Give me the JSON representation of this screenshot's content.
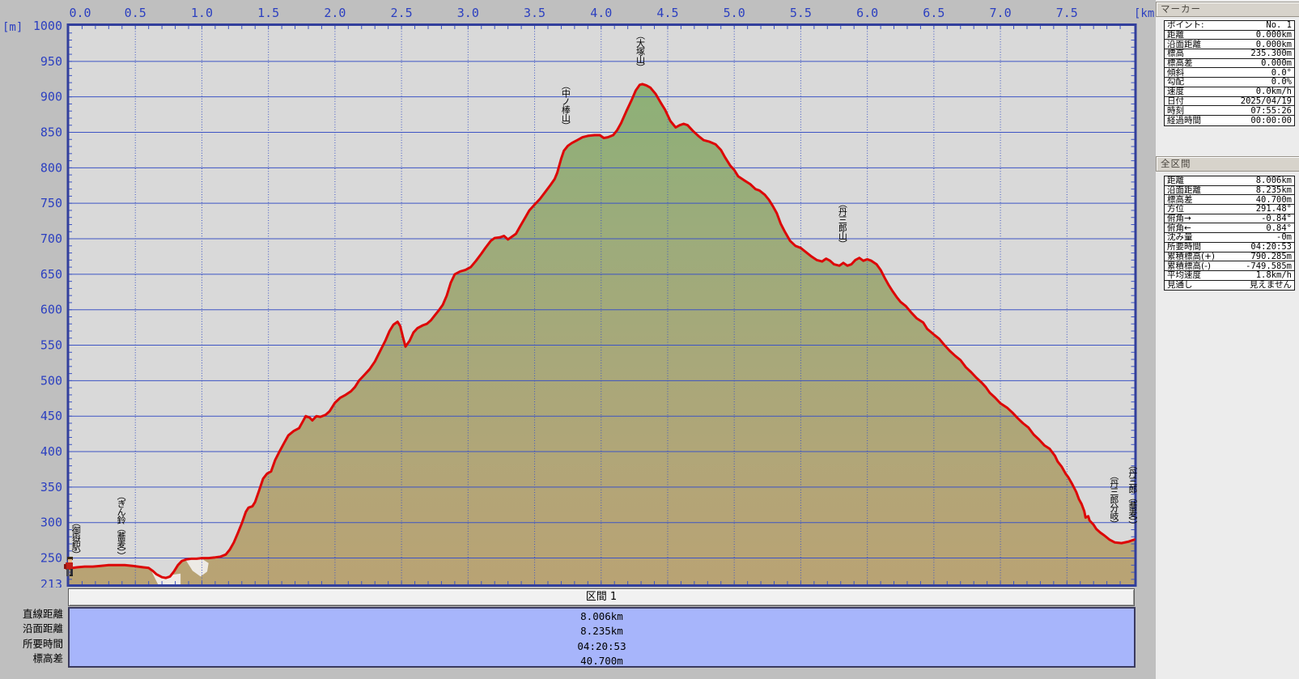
{
  "chart_data": {
    "type": "area",
    "title": "",
    "x_unit": "[km]",
    "y_unit": "[m]",
    "x_range": [
      0,
      8.006
    ],
    "y_range": [
      213,
      1000
    ],
    "x_ticks": [
      0.0,
      0.5,
      1.0,
      1.5,
      2.0,
      2.5,
      3.0,
      3.5,
      4.0,
      4.5,
      5.0,
      5.5,
      6.0,
      6.5,
      7.0,
      7.5
    ],
    "y_ticks": [
      1000,
      950,
      900,
      850,
      800,
      750,
      700,
      650,
      600,
      550,
      500,
      450,
      400,
      350,
      300,
      250,
      213
    ],
    "grid": true,
    "line_color": "#dd0606",
    "plot_bg": "#d9d9d9",
    "grid_color": "#3d54c4",
    "border_color": "#323f9c",
    "patch_color": "#edeae5",
    "fill_gradient": [
      "#82b06f",
      "#8eb077",
      "#9bac7b",
      "#a8a87a",
      "#b3a577",
      "#b9a374"
    ],
    "profile": [
      [
        0.0,
        235.3
      ],
      [
        0.06,
        237
      ],
      [
        0.12,
        238
      ],
      [
        0.18,
        238
      ],
      [
        0.24,
        239
      ],
      [
        0.3,
        240
      ],
      [
        0.36,
        240
      ],
      [
        0.42,
        240
      ],
      [
        0.48,
        239
      ],
      [
        0.52,
        238
      ],
      [
        0.56,
        237
      ],
      [
        0.6,
        236
      ],
      [
        0.63,
        232
      ],
      [
        0.66,
        227
      ],
      [
        0.7,
        223
      ],
      [
        0.73,
        222
      ],
      [
        0.76,
        224
      ],
      [
        0.79,
        231
      ],
      [
        0.82,
        240
      ],
      [
        0.85,
        246
      ],
      [
        0.88,
        248
      ],
      [
        0.92,
        249
      ],
      [
        0.96,
        249
      ],
      [
        1.0,
        250
      ],
      [
        1.05,
        250
      ],
      [
        1.1,
        251
      ],
      [
        1.14,
        252
      ],
      [
        1.18,
        255
      ],
      [
        1.21,
        262
      ],
      [
        1.24,
        272
      ],
      [
        1.27,
        285
      ],
      [
        1.3,
        299
      ],
      [
        1.33,
        315
      ],
      [
        1.35,
        321
      ],
      [
        1.38,
        323
      ],
      [
        1.4,
        329
      ],
      [
        1.43,
        345
      ],
      [
        1.46,
        362
      ],
      [
        1.49,
        369
      ],
      [
        1.52,
        372
      ],
      [
        1.55,
        388
      ],
      [
        1.58,
        399
      ],
      [
        1.62,
        413
      ],
      [
        1.65,
        423
      ],
      [
        1.69,
        429
      ],
      [
        1.73,
        433
      ],
      [
        1.76,
        443
      ],
      [
        1.78,
        450
      ],
      [
        1.81,
        448
      ],
      [
        1.83,
        444
      ],
      [
        1.86,
        450
      ],
      [
        1.89,
        449
      ],
      [
        1.93,
        452
      ],
      [
        1.96,
        457
      ],
      [
        2.0,
        469
      ],
      [
        2.04,
        476
      ],
      [
        2.08,
        480
      ],
      [
        2.12,
        485
      ],
      [
        2.15,
        491
      ],
      [
        2.18,
        500
      ],
      [
        2.22,
        508
      ],
      [
        2.26,
        516
      ],
      [
        2.3,
        527
      ],
      [
        2.34,
        542
      ],
      [
        2.38,
        557
      ],
      [
        2.41,
        570
      ],
      [
        2.44,
        579
      ],
      [
        2.47,
        583
      ],
      [
        2.49,
        577
      ],
      [
        2.51,
        562
      ],
      [
        2.53,
        548
      ],
      [
        2.56,
        556
      ],
      [
        2.59,
        568
      ],
      [
        2.62,
        574
      ],
      [
        2.66,
        578
      ],
      [
        2.69,
        580
      ],
      [
        2.72,
        585
      ],
      [
        2.75,
        592
      ],
      [
        2.78,
        599
      ],
      [
        2.81,
        607
      ],
      [
        2.84,
        620
      ],
      [
        2.87,
        638
      ],
      [
        2.9,
        650
      ],
      [
        2.94,
        654
      ],
      [
        2.98,
        656
      ],
      [
        3.02,
        660
      ],
      [
        3.06,
        669
      ],
      [
        3.1,
        679
      ],
      [
        3.13,
        687
      ],
      [
        3.17,
        697
      ],
      [
        3.2,
        701
      ],
      [
        3.24,
        702
      ],
      [
        3.27,
        704
      ],
      [
        3.3,
        699
      ],
      [
        3.33,
        703
      ],
      [
        3.36,
        707
      ],
      [
        3.39,
        717
      ],
      [
        3.43,
        730
      ],
      [
        3.46,
        740
      ],
      [
        3.5,
        748
      ],
      [
        3.54,
        756
      ],
      [
        3.58,
        766
      ],
      [
        3.62,
        776
      ],
      [
        3.65,
        784
      ],
      [
        3.67,
        793
      ],
      [
        3.7,
        813
      ],
      [
        3.72,
        824
      ],
      [
        3.75,
        831
      ],
      [
        3.78,
        835
      ],
      [
        3.82,
        839
      ],
      [
        3.86,
        843
      ],
      [
        3.9,
        845
      ],
      [
        3.95,
        846
      ],
      [
        3.99,
        846
      ],
      [
        4.02,
        842
      ],
      [
        4.05,
        843
      ],
      [
        4.09,
        846
      ],
      [
        4.12,
        853
      ],
      [
        4.15,
        863
      ],
      [
        4.19,
        880
      ],
      [
        4.23,
        896
      ],
      [
        4.26,
        909
      ],
      [
        4.29,
        917
      ],
      [
        4.31,
        918
      ],
      [
        4.34,
        916
      ],
      [
        4.37,
        913
      ],
      [
        4.41,
        904
      ],
      [
        4.45,
        891
      ],
      [
        4.48,
        882
      ],
      [
        4.52,
        866
      ],
      [
        4.56,
        857
      ],
      [
        4.59,
        860
      ],
      [
        4.62,
        862
      ],
      [
        4.65,
        860
      ],
      [
        4.69,
        852
      ],
      [
        4.73,
        845
      ],
      [
        4.77,
        839
      ],
      [
        4.81,
        837
      ],
      [
        4.86,
        833
      ],
      [
        4.9,
        825
      ],
      [
        4.93,
        815
      ],
      [
        4.97,
        803
      ],
      [
        5.0,
        797
      ],
      [
        5.03,
        788
      ],
      [
        5.07,
        783
      ],
      [
        5.12,
        777
      ],
      [
        5.16,
        770
      ],
      [
        5.19,
        768
      ],
      [
        5.23,
        762
      ],
      [
        5.26,
        755
      ],
      [
        5.29,
        746
      ],
      [
        5.32,
        736
      ],
      [
        5.35,
        721
      ],
      [
        5.38,
        710
      ],
      [
        5.42,
        697
      ],
      [
        5.46,
        690
      ],
      [
        5.5,
        687
      ],
      [
        5.54,
        681
      ],
      [
        5.58,
        675
      ],
      [
        5.62,
        670
      ],
      [
        5.66,
        668
      ],
      [
        5.69,
        672
      ],
      [
        5.72,
        669
      ],
      [
        5.75,
        664
      ],
      [
        5.79,
        662
      ],
      [
        5.82,
        666
      ],
      [
        5.85,
        662
      ],
      [
        5.88,
        664
      ],
      [
        5.91,
        670
      ],
      [
        5.94,
        673
      ],
      [
        5.97,
        669
      ],
      [
        6.0,
        671
      ],
      [
        6.03,
        669
      ],
      [
        6.07,
        664
      ],
      [
        6.1,
        656
      ],
      [
        6.13,
        645
      ],
      [
        6.16,
        635
      ],
      [
        6.19,
        626
      ],
      [
        6.22,
        618
      ],
      [
        6.25,
        611
      ],
      [
        6.29,
        605
      ],
      [
        6.33,
        596
      ],
      [
        6.37,
        588
      ],
      [
        6.42,
        582
      ],
      [
        6.45,
        573
      ],
      [
        6.5,
        565
      ],
      [
        6.54,
        559
      ],
      [
        6.58,
        550
      ],
      [
        6.62,
        542
      ],
      [
        6.66,
        535
      ],
      [
        6.7,
        529
      ],
      [
        6.74,
        519
      ],
      [
        6.78,
        512
      ],
      [
        6.82,
        504
      ],
      [
        6.86,
        497
      ],
      [
        6.89,
        491
      ],
      [
        6.92,
        483
      ],
      [
        6.96,
        476
      ],
      [
        7.0,
        468
      ],
      [
        7.05,
        462
      ],
      [
        7.09,
        455
      ],
      [
        7.13,
        447
      ],
      [
        7.17,
        440
      ],
      [
        7.21,
        434
      ],
      [
        7.25,
        424
      ],
      [
        7.29,
        417
      ],
      [
        7.33,
        409
      ],
      [
        7.37,
        404
      ],
      [
        7.41,
        394
      ],
      [
        7.43,
        386
      ],
      [
        7.46,
        379
      ],
      [
        7.49,
        369
      ],
      [
        7.51,
        364
      ],
      [
        7.54,
        354
      ],
      [
        7.57,
        343
      ],
      [
        7.59,
        333
      ],
      [
        7.61,
        326
      ],
      [
        7.63,
        316
      ],
      [
        7.64,
        307
      ],
      [
        7.66,
        309
      ],
      [
        7.67,
        303
      ],
      [
        7.7,
        297
      ],
      [
        7.72,
        291
      ],
      [
        7.75,
        286
      ],
      [
        7.78,
        282
      ],
      [
        7.82,
        276
      ],
      [
        7.86,
        272
      ],
      [
        7.91,
        271
      ],
      [
        7.96,
        273
      ],
      [
        8.006,
        276
      ]
    ],
    "annotations": [
      {
        "text": "（御嶽駅）",
        "km": 0.05,
        "top_m": 306
      },
      {
        "text": "（ぎん鈴（蕎麦））",
        "km": 0.39,
        "top_m": 344
      },
      {
        "text": "（中ノ棒山）",
        "km": 3.73,
        "top_m": 922
      },
      {
        "text": "（大塚山）",
        "km": 4.29,
        "top_m": 993
      },
      {
        "text": "（丹三郎山）",
        "km": 5.81,
        "top_m": 756
      },
      {
        "text": "（丹三郎分岐）",
        "km": 7.85,
        "top_m": 373
      },
      {
        "text": "（丹三郎（蕎麦））",
        "km": 7.99,
        "top_m": 387
      }
    ],
    "flat_patches": [
      [
        [
          0.6,
          240
        ],
        [
          0.63,
          228
        ],
        [
          0.67,
          213
        ],
        [
          0.84,
          213
        ],
        [
          0.84,
          228
        ],
        [
          0.76,
          226
        ],
        [
          0.7,
          226
        ],
        [
          0.64,
          236
        ]
      ],
      [
        [
          0.88,
          247
        ],
        [
          0.93,
          232
        ],
        [
          0.99,
          224
        ],
        [
          1.04,
          231
        ],
        [
          1.05,
          243
        ],
        [
          0.99,
          250
        ],
        [
          0.92,
          250
        ]
      ]
    ]
  },
  "marker_panel": {
    "title": "マーカー",
    "rows": [
      {
        "label": "ポイント:",
        "value": "No. 1"
      },
      {
        "label": "距離",
        "value": "0.000km"
      },
      {
        "label": "沿面距離",
        "value": "0.000km"
      },
      {
        "label": "標高",
        "value": "235.300m"
      },
      {
        "label": "標高差",
        "value": "0.000m"
      },
      {
        "label": "傾斜",
        "value": "0.0°"
      },
      {
        "label": "勾配",
        "value": "0.0%"
      },
      {
        "label": "速度",
        "value": "0.0km/h"
      },
      {
        "label": "日付",
        "value": "2025/04/19"
      },
      {
        "label": "時刻",
        "value": "07:55:26"
      },
      {
        "label": "経過時間",
        "value": "00:00:00"
      }
    ]
  },
  "overall_panel": {
    "title": "全区間",
    "rows": [
      {
        "label": "距離",
        "value": "8.006km"
      },
      {
        "label": "沿面距離",
        "value": "8.235km"
      },
      {
        "label": "標高差",
        "value": "40.700m"
      },
      {
        "label": "方位",
        "value": "291.48°"
      },
      {
        "label": "俯角→",
        "value": "-0.84°"
      },
      {
        "label": "俯角←",
        "value": "0.84°"
      },
      {
        "label": "沈み量",
        "value": "-0m"
      },
      {
        "label": "所要時間",
        "value": "04:20:53"
      },
      {
        "label": "累積標高(+)",
        "value": "790.285m"
      },
      {
        "label": "累積標高(-)",
        "value": "-749.585m"
      },
      {
        "label": "平均速度",
        "value": "1.8km/h"
      },
      {
        "label": "見通し",
        "value": "見えません"
      }
    ]
  },
  "bottom": {
    "segment_title": "区間 1",
    "row_labels": [
      "直線距離",
      "沿面距離",
      "所要時間",
      "標高差"
    ],
    "values": [
      "8.006km",
      "8.235km",
      "04:20:53",
      "40.700m"
    ]
  }
}
